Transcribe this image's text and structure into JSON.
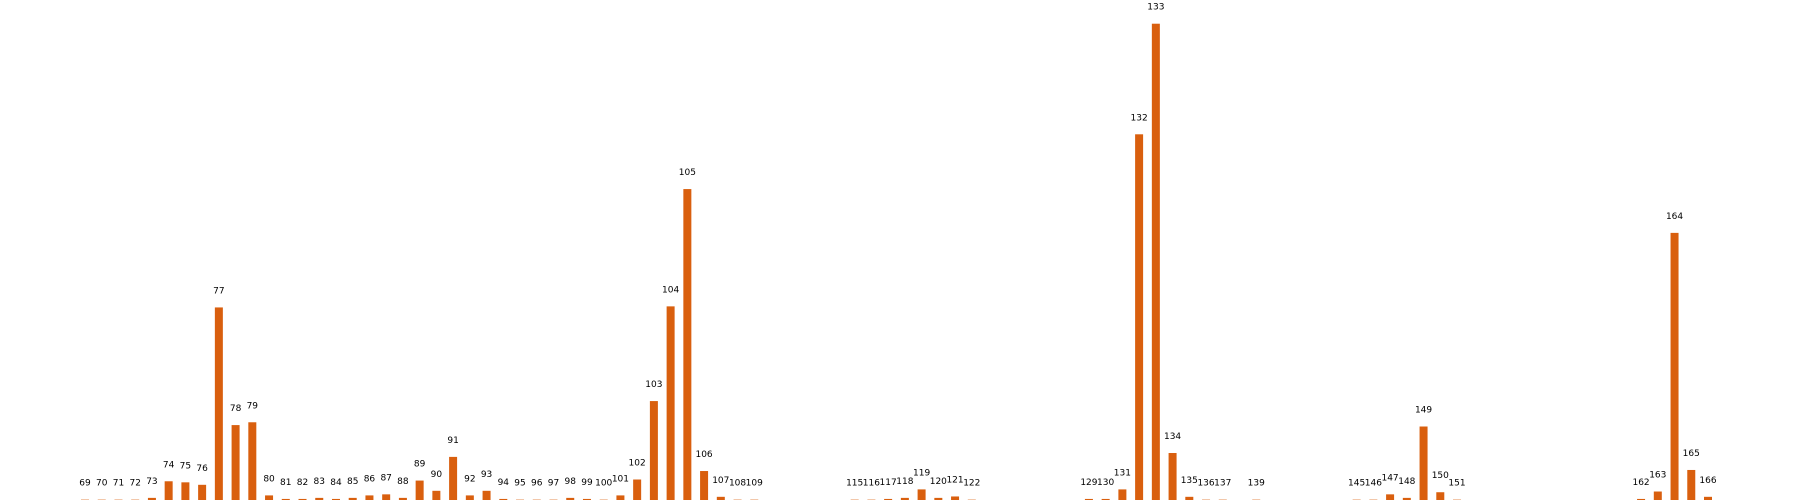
{
  "colors": {
    "bar": "#d95f0e",
    "background": "#ffffff",
    "label": "#000000"
  },
  "chart_data": {
    "type": "bar",
    "title": "",
    "xlabel": "",
    "ylabel": "",
    "grid": false,
    "x_range": [
      69,
      166
    ],
    "ylim": [
      0,
      135
    ],
    "points": [
      {
        "x": 69,
        "y": 0.1
      },
      {
        "x": 70,
        "y": 0.1
      },
      {
        "x": 71,
        "y": 0.1
      },
      {
        "x": 72,
        "y": 0.1
      },
      {
        "x": 73,
        "y": 0.6
      },
      {
        "x": 74,
        "y": 5.3
      },
      {
        "x": 75,
        "y": 5.0
      },
      {
        "x": 76,
        "y": 4.3
      },
      {
        "x": 77,
        "y": 54.5
      },
      {
        "x": 78,
        "y": 21.2
      },
      {
        "x": 79,
        "y": 22.0
      },
      {
        "x": 80,
        "y": 1.3
      },
      {
        "x": 81,
        "y": 0.3
      },
      {
        "x": 82,
        "y": 0.3
      },
      {
        "x": 83,
        "y": 0.6
      },
      {
        "x": 84,
        "y": 0.3
      },
      {
        "x": 85,
        "y": 0.6
      },
      {
        "x": 86,
        "y": 1.3
      },
      {
        "x": 87,
        "y": 1.6
      },
      {
        "x": 88,
        "y": 0.6
      },
      {
        "x": 89,
        "y": 5.5
      },
      {
        "x": 90,
        "y": 2.6
      },
      {
        "x": 91,
        "y": 12.2
      },
      {
        "x": 92,
        "y": 1.3
      },
      {
        "x": 93,
        "y": 2.6
      },
      {
        "x": 94,
        "y": 0.3
      },
      {
        "x": 95,
        "y": 0.1
      },
      {
        "x": 96,
        "y": 0.1
      },
      {
        "x": 97,
        "y": 0.1
      },
      {
        "x": 98,
        "y": 0.6
      },
      {
        "x": 99,
        "y": 0.3
      },
      {
        "x": 100,
        "y": 0.1
      },
      {
        "x": 101,
        "y": 1.3
      },
      {
        "x": 102,
        "y": 5.8
      },
      {
        "x": 103,
        "y": 28.0
      },
      {
        "x": 104,
        "y": 54.8
      },
      {
        "x": 105,
        "y": 88.0
      },
      {
        "x": 106,
        "y": 8.2
      },
      {
        "x": 107,
        "y": 0.9
      },
      {
        "x": 108,
        "y": 0.1
      },
      {
        "x": 109,
        "y": 0.1
      },
      {
        "x": 115,
        "y": 0.1
      },
      {
        "x": 116,
        "y": 0.1
      },
      {
        "x": 117,
        "y": 0.3
      },
      {
        "x": 118,
        "y": 0.6
      },
      {
        "x": 119,
        "y": 3.0
      },
      {
        "x": 120,
        "y": 0.6
      },
      {
        "x": 121,
        "y": 1.0
      },
      {
        "x": 122,
        "y": 0.1
      },
      {
        "x": 129,
        "y": 0.3
      },
      {
        "x": 130,
        "y": 0.3
      },
      {
        "x": 131,
        "y": 3.0
      },
      {
        "x": 132,
        "y": 103.5
      },
      {
        "x": 133,
        "y": 134.8
      },
      {
        "x": 134,
        "y": 13.3
      },
      {
        "x": 135,
        "y": 0.9
      },
      {
        "x": 136,
        "y": 0.1
      },
      {
        "x": 137,
        "y": 0.1
      },
      {
        "x": 139,
        "y": 0.1
      },
      {
        "x": 145,
        "y": 0.1
      },
      {
        "x": 146,
        "y": 0.1
      },
      {
        "x": 147,
        "y": 1.6
      },
      {
        "x": 148,
        "y": 0.6
      },
      {
        "x": 149,
        "y": 20.8
      },
      {
        "x": 150,
        "y": 2.2
      },
      {
        "x": 151,
        "y": 0.1
      },
      {
        "x": 162,
        "y": 0.3
      },
      {
        "x": 163,
        "y": 2.4
      },
      {
        "x": 164,
        "y": 75.6
      },
      {
        "x": 165,
        "y": 8.5
      },
      {
        "x": 166,
        "y": 0.9
      }
    ]
  }
}
